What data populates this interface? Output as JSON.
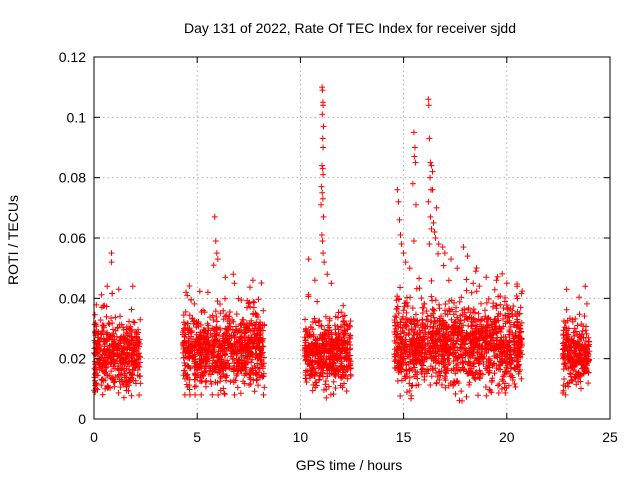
{
  "chart_data": {
    "type": "scatter",
    "title": "Day 131 of 2022, Rate Of TEC Index for receiver sjdd",
    "xlabel": "GPS time / hours",
    "ylabel": "ROTI / TECUs",
    "xlim": [
      0,
      25
    ],
    "ylim": [
      0,
      0.12
    ],
    "xticks": [
      0,
      5,
      10,
      15,
      20,
      25
    ],
    "yticks": [
      0,
      0.02,
      0.04,
      0.06,
      0.08,
      0.1,
      0.12
    ],
    "xtick_labels": [
      "0",
      "5",
      "10",
      "15",
      "20",
      "25"
    ],
    "ytick_labels": [
      "0",
      "0.02",
      "0.04",
      "0.06",
      "0.08",
      "0.1",
      "0.12"
    ],
    "grid": true,
    "marker": "+",
    "color": "#ff0000",
    "series": [
      {
        "name": "ROTI",
        "segments": [
          {
            "start": 0.0,
            "end": 2.25,
            "base": 0.021,
            "spread": 0.012,
            "min": 0.006,
            "max": 0.044
          },
          {
            "start": 4.3,
            "end": 8.25,
            "base": 0.023,
            "spread": 0.013,
            "min": 0.008,
            "max": 0.048
          },
          {
            "start": 10.2,
            "end": 12.45,
            "base": 0.022,
            "spread": 0.012,
            "min": 0.007,
            "max": 0.042
          },
          {
            "start": 14.55,
            "end": 20.75,
            "base": 0.024,
            "spread": 0.014,
            "min": 0.006,
            "max": 0.058
          },
          {
            "start": 22.7,
            "end": 24.0,
            "base": 0.021,
            "spread": 0.011,
            "min": 0.008,
            "max": 0.044
          }
        ],
        "spikes": [
          [
            0.85,
            0.055
          ],
          [
            0.85,
            0.052
          ],
          [
            1.2,
            0.043
          ],
          [
            5.85,
            0.067
          ],
          [
            5.9,
            0.059
          ],
          [
            5.95,
            0.055
          ],
          [
            6.0,
            0.053
          ],
          [
            5.8,
            0.051
          ],
          [
            6.8,
            0.045
          ],
          [
            7.7,
            0.046
          ],
          [
            10.4,
            0.053
          ],
          [
            10.7,
            0.046
          ],
          [
            11.05,
            0.11
          ],
          [
            11.07,
            0.109
          ],
          [
            11.09,
            0.105
          ],
          [
            11.1,
            0.104
          ],
          [
            11.06,
            0.101
          ],
          [
            11.12,
            0.097
          ],
          [
            11.08,
            0.093
          ],
          [
            11.1,
            0.09
          ],
          [
            11.05,
            0.084
          ],
          [
            11.08,
            0.083
          ],
          [
            11.1,
            0.081
          ],
          [
            11.02,
            0.077
          ],
          [
            11.06,
            0.075
          ],
          [
            11.09,
            0.073
          ],
          [
            11.0,
            0.071
          ],
          [
            11.12,
            0.067
          ],
          [
            11.04,
            0.061
          ],
          [
            11.07,
            0.059
          ],
          [
            11.1,
            0.055
          ],
          [
            11.15,
            0.052
          ],
          [
            11.3,
            0.048
          ],
          [
            11.5,
            0.045
          ],
          [
            14.7,
            0.076
          ],
          [
            14.75,
            0.072
          ],
          [
            14.8,
            0.066
          ],
          [
            14.85,
            0.061
          ],
          [
            14.9,
            0.058
          ],
          [
            15.0,
            0.055
          ],
          [
            15.1,
            0.052
          ],
          [
            15.3,
            0.05
          ],
          [
            15.5,
            0.095
          ],
          [
            15.55,
            0.09
          ],
          [
            15.52,
            0.087
          ],
          [
            15.58,
            0.085
          ],
          [
            15.45,
            0.078
          ],
          [
            15.6,
            0.071
          ],
          [
            15.5,
            0.059
          ],
          [
            16.2,
            0.106
          ],
          [
            16.22,
            0.104
          ],
          [
            16.25,
            0.093
          ],
          [
            16.3,
            0.085
          ],
          [
            16.35,
            0.084
          ],
          [
            16.4,
            0.082
          ],
          [
            16.28,
            0.08
          ],
          [
            16.33,
            0.076
          ],
          [
            16.4,
            0.076
          ],
          [
            16.2,
            0.072
          ],
          [
            16.3,
            0.067
          ],
          [
            16.45,
            0.065
          ],
          [
            16.35,
            0.063
          ],
          [
            16.5,
            0.062
          ],
          [
            16.6,
            0.07
          ],
          [
            16.55,
            0.06
          ],
          [
            16.7,
            0.058
          ],
          [
            16.25,
            0.058
          ],
          [
            16.9,
            0.057
          ],
          [
            17.0,
            0.055
          ],
          [
            17.3,
            0.053
          ],
          [
            17.6,
            0.05
          ],
          [
            17.9,
            0.057
          ],
          [
            18.1,
            0.054
          ],
          [
            18.5,
            0.049
          ],
          [
            19.0,
            0.047
          ],
          [
            19.5,
            0.046
          ],
          [
            20.0,
            0.045
          ],
          [
            20.5,
            0.044
          ],
          [
            22.9,
            0.043
          ],
          [
            23.8,
            0.044
          ]
        ]
      }
    ]
  }
}
